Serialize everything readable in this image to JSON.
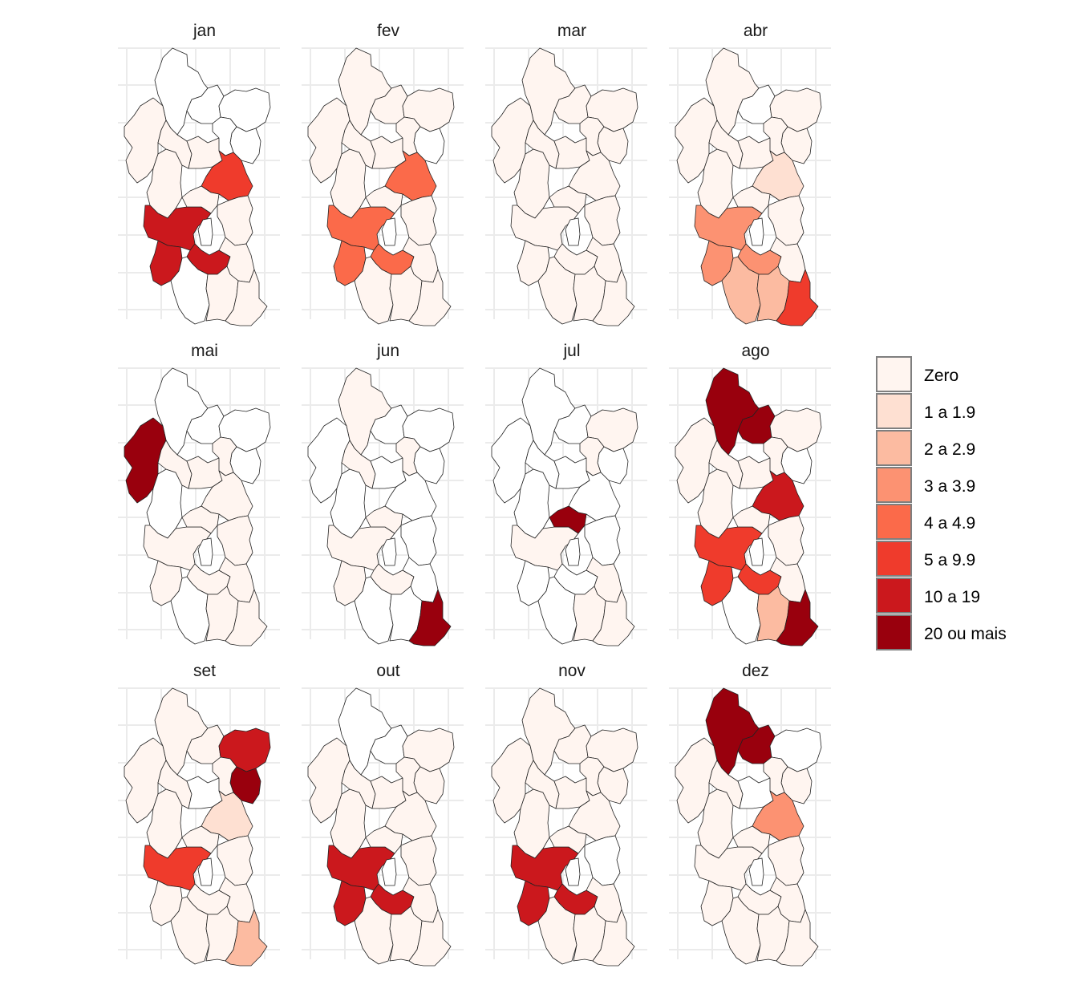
{
  "chart_data": {
    "type": "choropleth",
    "panels": [
      "jan",
      "fev",
      "mar",
      "abr",
      "mai",
      "jun",
      "jul",
      "ago",
      "set",
      "out",
      "nov",
      "dez"
    ],
    "legend": {
      "placement": "right",
      "categories": [
        "Zero",
        "1 a 1.9",
        "2 a 2.9",
        "3 a 3.9",
        "4 a 4.9",
        "5 a 9.9",
        "10 a 19",
        "20 ou mais"
      ],
      "colors": [
        "#fff5f0",
        "#fee0d2",
        "#fcbba1",
        "#fc9272",
        "#fb6a4a",
        "#ef3b2c",
        "#cb181d",
        "#99000d"
      ]
    },
    "grid": true,
    "regions": [
      "N",
      "NW",
      "NC",
      "NE1",
      "NE2",
      "W",
      "WC",
      "C",
      "E",
      "E2",
      "SW",
      "SC",
      "SE",
      "MSW",
      "MSC",
      "MSE",
      "SSW",
      "SSC",
      "SSE"
    ],
    "values": {
      "jan": {
        "N": -1,
        "NW": 0,
        "NC": -1,
        "NE1": -1,
        "NE2": -1,
        "W": 0,
        "WC": 0,
        "C": 0,
        "E": -1,
        "E2": 5,
        "SW": 6,
        "SC": 0,
        "SE": 0,
        "MSW": 6,
        "MSC": 6,
        "MSE": 0,
        "SSW": -1,
        "SSC": 0,
        "SSE": 0
      },
      "fev": {
        "N": 0,
        "NW": 0,
        "NC": 0,
        "NE1": 0,
        "NE2": -1,
        "W": 0,
        "WC": 0,
        "C": 0,
        "E": 0,
        "E2": 4,
        "SW": 4,
        "SC": 0,
        "SE": 0,
        "MSW": 4,
        "MSC": 4,
        "MSE": 0,
        "SSW": 0,
        "SSC": 0,
        "SSE": 0
      },
      "mar": {
        "N": 0,
        "NW": 0,
        "NC": 0,
        "NE1": 0,
        "NE2": 0,
        "W": 0,
        "WC": 0,
        "C": 0,
        "E": 0,
        "E2": 0,
        "SW": 0,
        "SC": 0,
        "SE": 0,
        "MSW": 0,
        "MSC": 0,
        "MSE": 0,
        "SSW": 0,
        "SSC": 0,
        "SSE": 0
      },
      "abr": {
        "N": 0,
        "NW": 0,
        "NC": -1,
        "NE1": 0,
        "NE2": 0,
        "W": 0,
        "WC": 0,
        "C": 0,
        "E": 0,
        "E2": 1,
        "SW": 3,
        "SC": 0,
        "SE": 0,
        "MSW": 3,
        "MSC": 3,
        "MSE": 0,
        "SSW": 2,
        "SSC": 2,
        "SSE": 5
      },
      "mai": {
        "N": -1,
        "NW": 7,
        "NC": -1,
        "NE1": -1,
        "NE2": -1,
        "W": -1,
        "WC": 0,
        "C": 0,
        "E": 0,
        "E2": 0,
        "SW": 0,
        "SC": 0,
        "SE": 0,
        "MSW": 0,
        "MSC": 0,
        "MSE": 0,
        "SSW": -1,
        "SSC": 0,
        "SSE": 0
      },
      "jun": {
        "N": 0,
        "NW": -1,
        "NC": -1,
        "NE1": -1,
        "NE2": -1,
        "W": -1,
        "WC": 0,
        "C": -1,
        "E": 0,
        "E2": -1,
        "SW": 0,
        "SC": 0,
        "SE": -1,
        "MSW": 0,
        "MSC": 0,
        "MSE": -1,
        "SSW": -1,
        "SSC": -1,
        "SSE": 7
      },
      "jul": {
        "N": -1,
        "NW": -1,
        "NC": -1,
        "NE1": 0,
        "NE2": -1,
        "W": -1,
        "WC": -1,
        "C": -1,
        "E": 0,
        "E2": -1,
        "SW": 0,
        "SC": 7,
        "SE": -1,
        "MSW": -1,
        "MSC": -1,
        "MSE": 0,
        "SSW": -1,
        "SSC": 0,
        "SSE": 0
      },
      "ago": {
        "N": 7,
        "NW": 0,
        "NC": 7,
        "NE1": 0,
        "NE2": -1,
        "W": 0,
        "WC": 0,
        "C": 0,
        "E": 0,
        "E2": 6,
        "SW": 5,
        "SC": 0,
        "SE": 0,
        "MSW": 5,
        "MSC": 5,
        "MSE": 0,
        "SSW": -1,
        "SSC": 2,
        "SSE": 7
      },
      "set": {
        "N": 0,
        "NW": 0,
        "NC": 0,
        "NE1": 6,
        "NE2": 7,
        "W": 0,
        "WC": 0,
        "C": -1,
        "E": 0,
        "E2": 1,
        "SW": 5,
        "SC": 0,
        "SE": 0,
        "MSW": 0,
        "MSC": 0,
        "MSE": 0,
        "SSW": 0,
        "SSC": 0,
        "SSE": 2
      },
      "out": {
        "N": -1,
        "NW": 0,
        "NC": -1,
        "NE1": 0,
        "NE2": 0,
        "W": 0,
        "WC": 0,
        "C": 0,
        "E": 0,
        "E2": 0,
        "SW": 6,
        "SC": 0,
        "SE": 0,
        "MSW": 6,
        "MSC": 6,
        "MSE": 0,
        "SSW": 0,
        "SSC": 0,
        "SSE": 0
      },
      "nov": {
        "N": 0,
        "NW": 0,
        "NC": 0,
        "NE1": 0,
        "NE2": 0,
        "W": 0,
        "WC": 0,
        "C": 0,
        "E": 0,
        "E2": 0,
        "SW": 6,
        "SC": 0,
        "SE": -1,
        "MSW": 6,
        "MSC": 6,
        "MSE": 0,
        "SSW": 0,
        "SSC": 0,
        "SSE": 0
      },
      "dez": {
        "N": 7,
        "NW": 0,
        "NC": 7,
        "NE1": -1,
        "NE2": 0,
        "W": 0,
        "WC": 0,
        "C": -1,
        "E": 0,
        "E2": 3,
        "SW": 0,
        "SC": 0,
        "SE": 0,
        "MSW": 0,
        "MSC": 0,
        "MSE": 0,
        "SSW": 0,
        "SSC": 0,
        "SSE": 0
      }
    }
  }
}
